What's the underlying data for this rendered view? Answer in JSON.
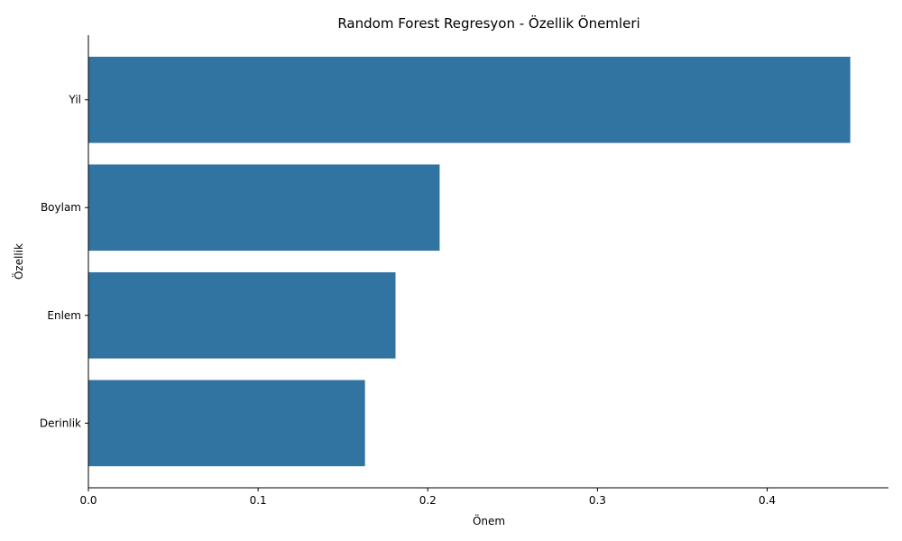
{
  "chart_data": {
    "type": "bar",
    "orientation": "horizontal",
    "title": "Random Forest Regresyon - Özellik Önemleri",
    "xlabel": "Önem",
    "ylabel": "Özellik",
    "categories": [
      "Yil",
      "Boylam",
      "Enlem",
      "Derinlik"
    ],
    "values": [
      0.449,
      0.207,
      0.181,
      0.163
    ],
    "xlim": [
      0,
      0.4715
    ],
    "xticks": [
      0.0,
      0.1,
      0.2,
      0.3,
      0.4
    ],
    "xtick_labels": [
      "0.0",
      "0.1",
      "0.2",
      "0.3",
      "0.4"
    ],
    "bar_color": "#3274a1",
    "grid": false,
    "legend": "none"
  }
}
